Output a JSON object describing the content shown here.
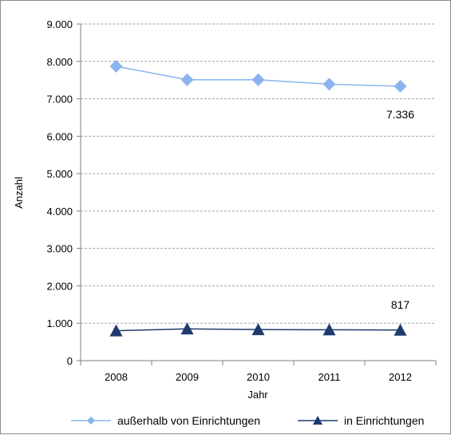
{
  "chart_data": {
    "type": "line",
    "title": "",
    "xlabel": "Jahr",
    "ylabel": "Anzahl",
    "categories": [
      "2008",
      "2009",
      "2010",
      "2011",
      "2012"
    ],
    "ylim": [
      0,
      9000
    ],
    "yticks": [
      0,
      1000,
      2000,
      3000,
      4000,
      5000,
      6000,
      7000,
      8000,
      9000
    ],
    "ytick_labels": [
      "0",
      "1.000",
      "2.000",
      "3.000",
      "4.000",
      "5.000",
      "6.000",
      "7.000",
      "8.000",
      "9.000"
    ],
    "grid": true,
    "legend_position": "bottom",
    "series": [
      {
        "name": "außerhalb von Einrichtungen",
        "values": [
          7870,
          7510,
          7510,
          7390,
          7336
        ],
        "color": "#8ab4f0",
        "marker": "diamond",
        "end_label": "7.336"
      },
      {
        "name": "in Einrichtungen",
        "values": [
          800,
          850,
          830,
          825,
          817
        ],
        "color": "#1f3b6e",
        "marker": "triangle",
        "end_label": "817"
      }
    ]
  }
}
